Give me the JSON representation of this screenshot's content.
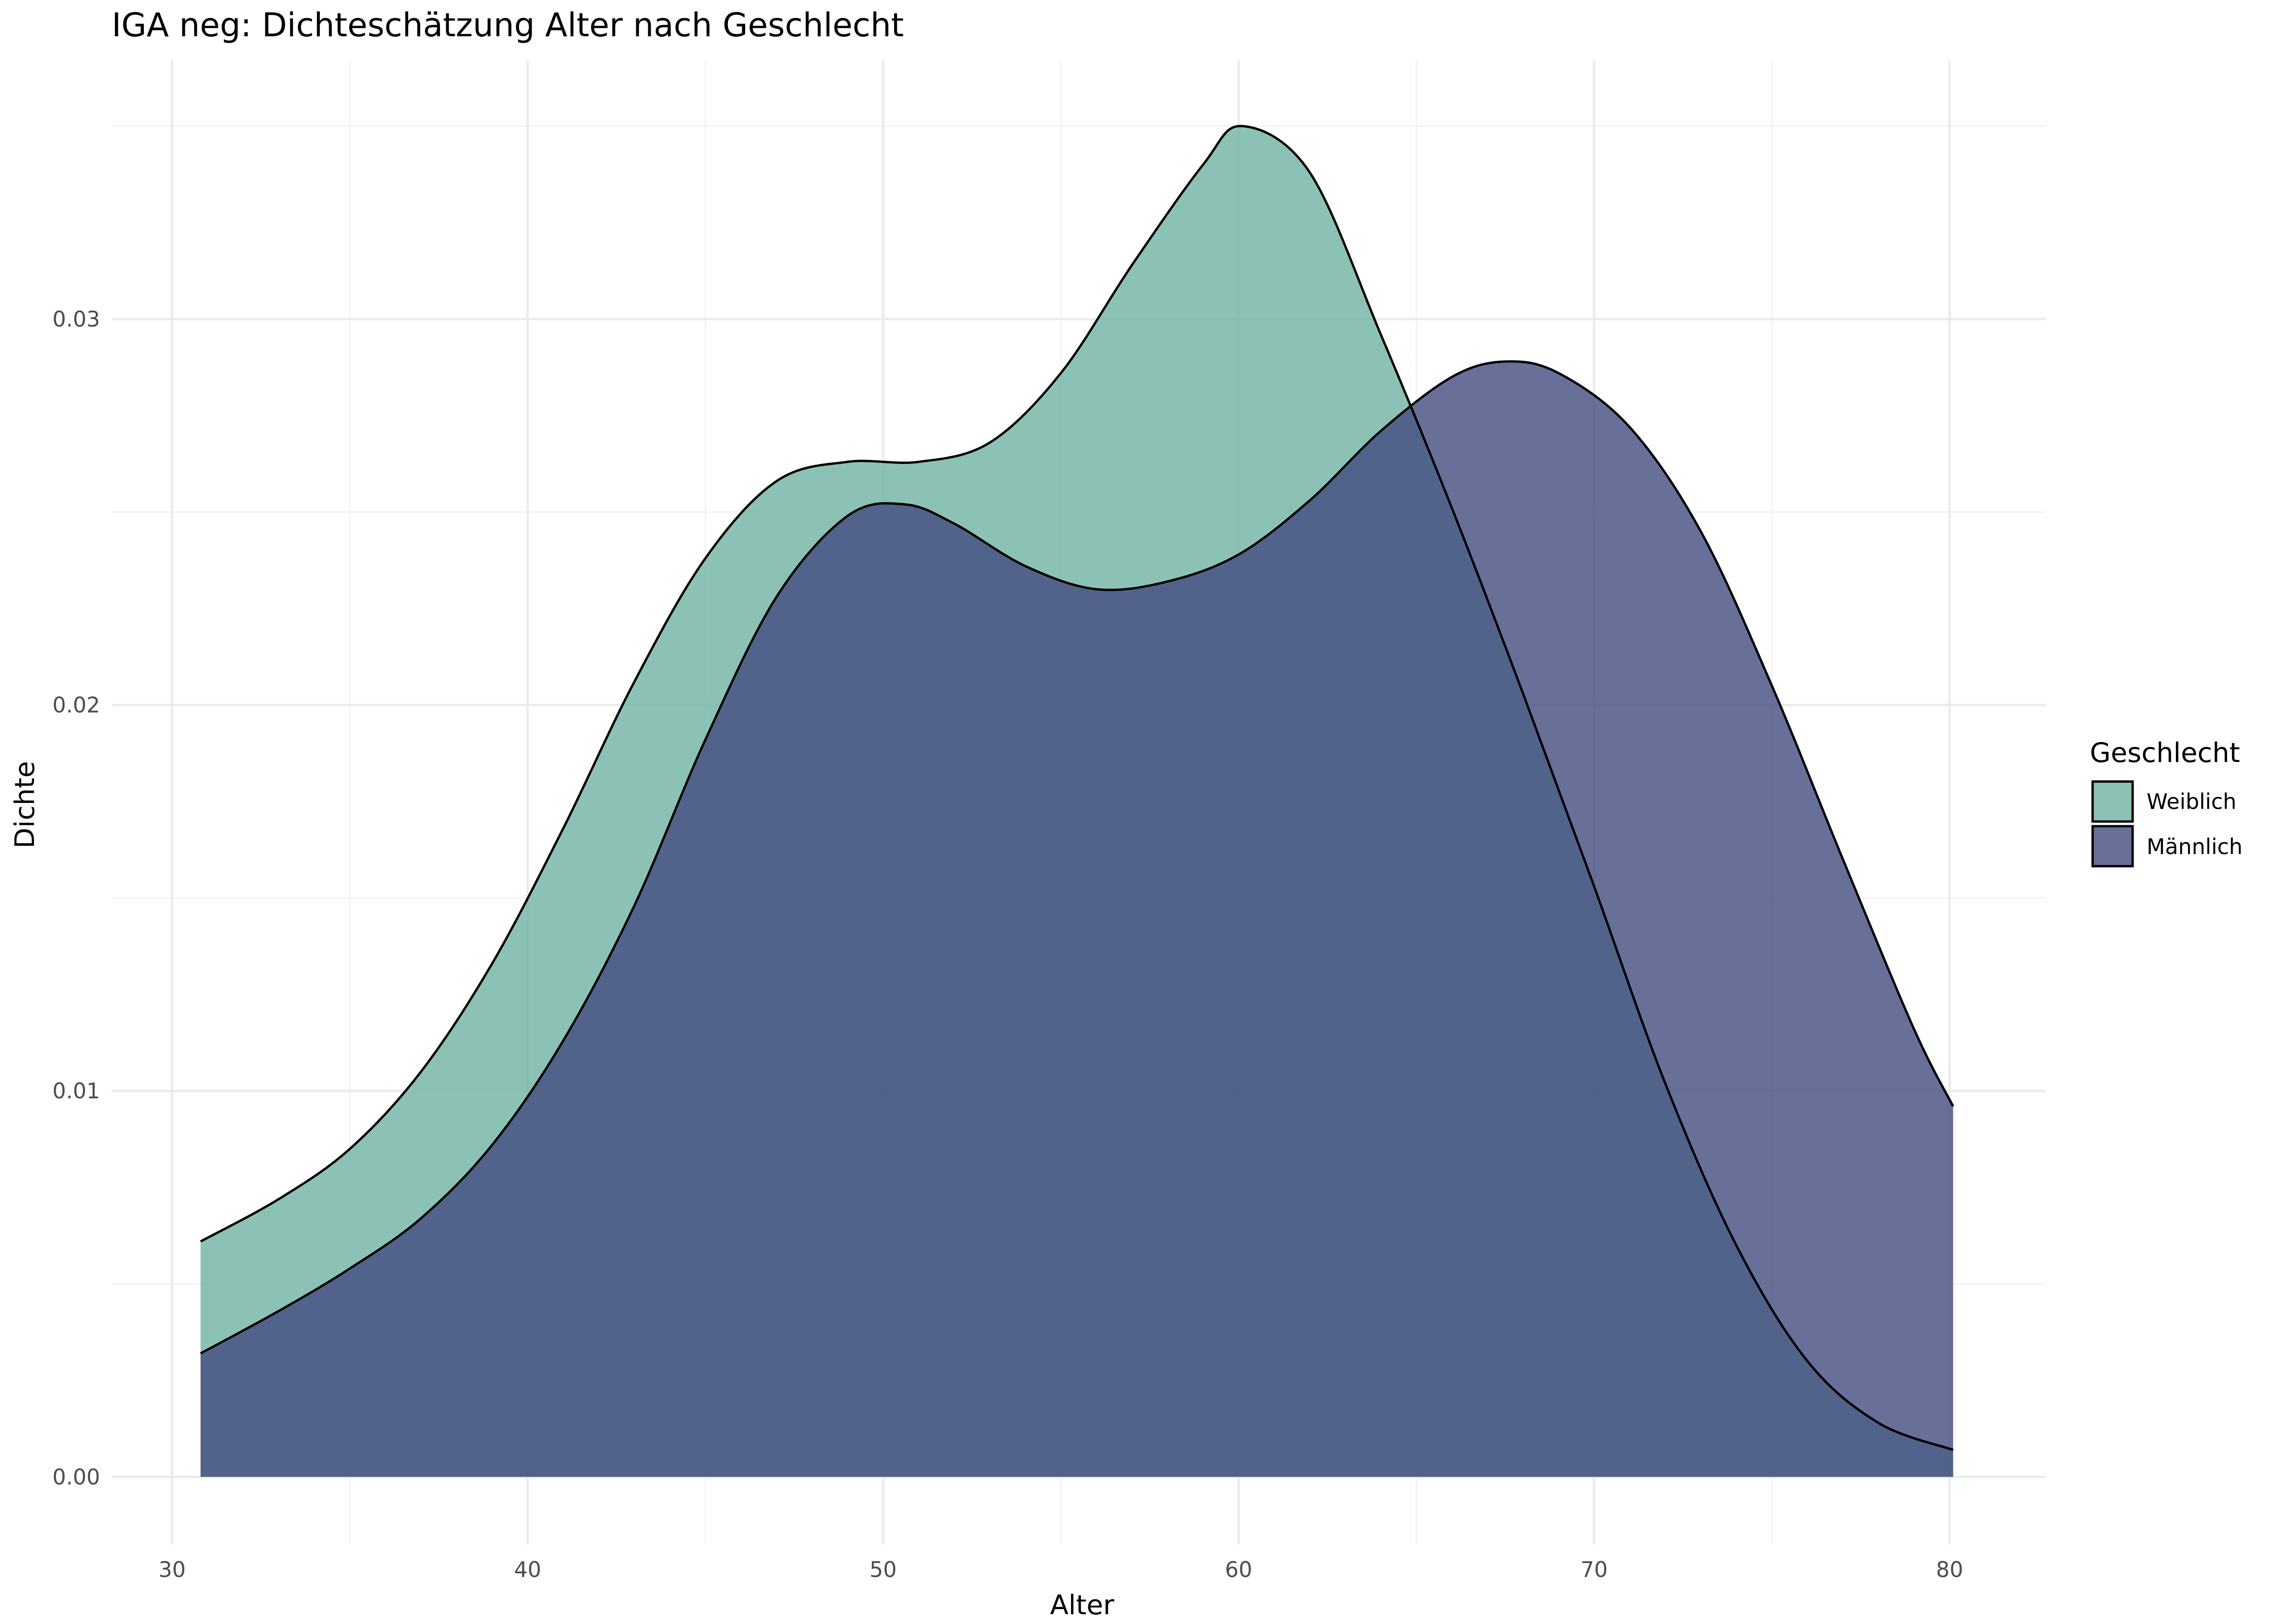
{
  "chart_data": {
    "type": "area",
    "title": "IGA neg: Dichteschätzung Alter nach Geschlecht",
    "xlabel": "Alter",
    "ylabel": "Dichte",
    "xlim": [
      28.3,
      82.7
    ],
    "ylim": [
      -0.00175,
      0.0367
    ],
    "x_ticks": [
      "30",
      "40",
      "50",
      "60",
      "70",
      "80"
    ],
    "y_ticks": [
      "0.00",
      "0.01",
      "0.02",
      "0.03"
    ],
    "grid": true,
    "legend": {
      "title": "Geschlecht",
      "position": "right"
    },
    "series": [
      {
        "name": "Weiblich",
        "color": "#6fb3a2",
        "opacity": 0.8,
        "points": [
          [
            30.8,
            0.0061
          ],
          [
            33,
            0.0072
          ],
          [
            35,
            0.0085
          ],
          [
            37,
            0.0105
          ],
          [
            39,
            0.0133
          ],
          [
            41,
            0.0168
          ],
          [
            43,
            0.0206
          ],
          [
            45,
            0.0238
          ],
          [
            47,
            0.0258
          ],
          [
            49,
            0.0263
          ],
          [
            51,
            0.0263
          ],
          [
            53,
            0.0268
          ],
          [
            55,
            0.0286
          ],
          [
            57,
            0.0314
          ],
          [
            59,
            0.034
          ],
          [
            60.1,
            0.035
          ],
          [
            62,
            0.0338
          ],
          [
            64,
            0.0296
          ],
          [
            66,
            0.0251
          ],
          [
            68,
            0.0203
          ],
          [
            70,
            0.0153
          ],
          [
            72,
            0.0102
          ],
          [
            74,
            0.006
          ],
          [
            76,
            0.003
          ],
          [
            78,
            0.0014
          ],
          [
            80.1,
            0.0007
          ]
        ]
      },
      {
        "name": "Männlich",
        "color": "#424b80",
        "opacity": 0.8,
        "points": [
          [
            30.8,
            0.0032
          ],
          [
            33,
            0.0043
          ],
          [
            35,
            0.0054
          ],
          [
            37,
            0.0067
          ],
          [
            39,
            0.0086
          ],
          [
            41,
            0.0113
          ],
          [
            43,
            0.0148
          ],
          [
            45,
            0.0191
          ],
          [
            47,
            0.0228
          ],
          [
            49,
            0.0249
          ],
          [
            50.6,
            0.0252
          ],
          [
            52,
            0.0247
          ],
          [
            54,
            0.0236
          ],
          [
            56,
            0.023
          ],
          [
            58,
            0.0232
          ],
          [
            60,
            0.0239
          ],
          [
            62,
            0.0253
          ],
          [
            64,
            0.0271
          ],
          [
            66,
            0.0285
          ],
          [
            67.5,
            0.0289
          ],
          [
            69,
            0.0286
          ],
          [
            71,
            0.0272
          ],
          [
            73,
            0.0245
          ],
          [
            75,
            0.0205
          ],
          [
            77,
            0.016
          ],
          [
            79,
            0.0116
          ],
          [
            80.1,
            0.0096
          ]
        ]
      }
    ]
  }
}
